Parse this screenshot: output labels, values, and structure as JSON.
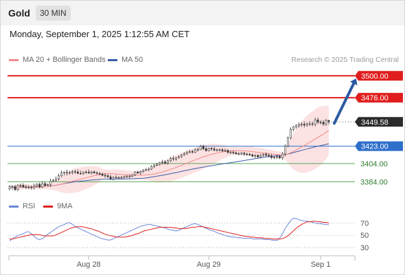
{
  "header": {
    "title": "Gold",
    "timeframe": "30 MIN"
  },
  "datetime": "Monday, September 1, 2025 1:12:55 AM CET",
  "legend": {
    "ma": "MA 20 + Bollinger Bands",
    "ma50": "MA 50",
    "rsi": "RSI",
    "ma9": "9MA"
  },
  "credit": "Research © 2025 Trading Central",
  "colors": {
    "resistance": "#e01e1e",
    "support_main": "#2f6fcc",
    "support": "#5aa65a",
    "ma20": "#f08a8a",
    "ma50": "#3a5da8",
    "band_fill": "#fbd6d6",
    "candle": "#333333",
    "arrow": "#2a5aa0",
    "rsi": "#6b86d8",
    "ma9": "#e01e1e"
  },
  "chart_data": [
    {
      "type": "candlestick",
      "title": "Gold",
      "timeframe": "30 MIN",
      "ylim": [
        3370,
        3510
      ],
      "x_ticks": [
        {
          "label": "Aug 28",
          "t": 29
        },
        {
          "label": "Aug 29",
          "t": 73
        },
        {
          "label": "Sep 1",
          "t": 114
        }
      ],
      "levels": [
        {
          "name": "resistance-2",
          "label": "3500.00",
          "value": 3500.0,
          "kind": "resistance"
        },
        {
          "name": "resistance-1",
          "label": "3476.00",
          "value": 3476.0,
          "kind": "resistance"
        },
        {
          "name": "last-price",
          "label": "3449.58",
          "value": 3449.58,
          "kind": "last"
        },
        {
          "name": "pivot",
          "label": "3423.00",
          "value": 3423.0,
          "kind": "pivot"
        },
        {
          "name": "support-1",
          "label": "3404.00",
          "value": 3404.0,
          "kind": "support"
        },
        {
          "name": "support-2",
          "label": "3384.00",
          "value": 3384.0,
          "kind": "support"
        }
      ],
      "arrow": {
        "from": [
          119,
          3448
        ],
        "to": [
          127,
          3497
        ]
      },
      "candles": [
        [
          3376.5,
          3380.6,
          3374.4,
          3378.5
        ],
        [
          3378.5,
          3380.5,
          3375.2,
          3378.7
        ],
        [
          3378.7,
          3380.7,
          3373.8,
          3375.5
        ],
        [
          3375.5,
          3381.6,
          3373.4,
          3379.8
        ],
        [
          3379.8,
          3382.1,
          3377.4,
          3380.1
        ],
        [
          3380.1,
          3382.5,
          3377.2,
          3378.2
        ],
        [
          3378.2,
          3380.9,
          3376.4,
          3377.9
        ],
        [
          3377.9,
          3380.3,
          3376.3,
          3378.1
        ],
        [
          3378.1,
          3380.1,
          3375.4,
          3377.6
        ],
        [
          3377.6,
          3382.2,
          3375.5,
          3379.4
        ],
        [
          3379.4,
          3382.3,
          3377.8,
          3381.4
        ],
        [
          3381.4,
          3383.1,
          3376.9,
          3378.2
        ],
        [
          3378.2,
          3384.5,
          3377.1,
          3382.0
        ],
        [
          3382.0,
          3384.1,
          3378.8,
          3380.0
        ],
        [
          3380.0,
          3382.1,
          3379.1,
          3380.7
        ],
        [
          3380.7,
          3387.4,
          3378.4,
          3384.6
        ],
        [
          3384.6,
          3387.3,
          3383.7,
          3385.6
        ],
        [
          3385.6,
          3389.7,
          3384.4,
          3387.1
        ],
        [
          3387.1,
          3392.9,
          3385.5,
          3390.5
        ],
        [
          3390.5,
          3396.4,
          3389.1,
          3393.6
        ],
        [
          3393.6,
          3395.3,
          3391.0,
          3394.4
        ],
        [
          3394.4,
          3397.2,
          3390.9,
          3393.9
        ],
        [
          3393.9,
          3396.0,
          3392.0,
          3394.0
        ],
        [
          3394.0,
          3396.7,
          3392.2,
          3395.1
        ],
        [
          3395.1,
          3397.3,
          3392.8,
          3394.7
        ],
        [
          3394.7,
          3397.4,
          3392.4,
          3393.2
        ],
        [
          3393.2,
          3396.1,
          3391.9,
          3392.7
        ],
        [
          3392.7,
          3395.3,
          3391.5,
          3394.7
        ],
        [
          3394.7,
          3396.5,
          3392.8,
          3394.5
        ],
        [
          3394.5,
          3397.5,
          3392.7,
          3393.6
        ],
        [
          3393.6,
          3395.9,
          3391.9,
          3394.9
        ],
        [
          3394.9,
          3396.2,
          3392.8,
          3393.7
        ],
        [
          3393.7,
          3395.6,
          3391.7,
          3393.1
        ],
        [
          3393.1,
          3395.0,
          3391.1,
          3392.4
        ],
        [
          3392.4,
          3394.2,
          3389.9,
          3391.0
        ],
        [
          3391.0,
          3393.4,
          3388.0,
          3390.6
        ],
        [
          3390.6,
          3392.2,
          3387.5,
          3389.5
        ],
        [
          3389.5,
          3391.6,
          3385.8,
          3387.0
        ],
        [
          3387.0,
          3390.1,
          3385.3,
          3388.9
        ],
        [
          3388.9,
          3391.2,
          3386.6,
          3388.5
        ],
        [
          3388.5,
          3390.4,
          3387.1,
          3388.3
        ],
        [
          3388.3,
          3390.2,
          3386.6,
          3388.9
        ],
        [
          3388.9,
          3390.9,
          3386.9,
          3389.7
        ],
        [
          3389.7,
          3391.6,
          3388.0,
          3390.0
        ],
        [
          3390.0,
          3392.1,
          3387.9,
          3390.0
        ],
        [
          3390.0,
          3392.5,
          3389.0,
          3391.5
        ],
        [
          3391.5,
          3395.6,
          3390.3,
          3394.7
        ],
        [
          3394.7,
          3396.1,
          3392.8,
          3393.5
        ],
        [
          3393.5,
          3396.4,
          3391.6,
          3395.1
        ],
        [
          3395.1,
          3397.9,
          3393.7,
          3396.9
        ],
        [
          3396.9,
          3399.0,
          3395.7,
          3397.5
        ],
        [
          3397.5,
          3399.8,
          3395.3,
          3397.9
        ],
        [
          3397.9,
          3402.4,
          3396.9,
          3400.6
        ],
        [
          3400.6,
          3403.6,
          3399.0,
          3402.0
        ],
        [
          3402.0,
          3404.8,
          3400.9,
          3403.1
        ],
        [
          3403.1,
          3405.9,
          3401.7,
          3404.8
        ],
        [
          3404.8,
          3408.0,
          3402.8,
          3405.6
        ],
        [
          3405.6,
          3407.6,
          3403.0,
          3404.3
        ],
        [
          3404.3,
          3408.1,
          3402.8,
          3406.9
        ],
        [
          3406.9,
          3411.4,
          3405.7,
          3409.5
        ],
        [
          3409.5,
          3412.5,
          3406.8,
          3408.9
        ],
        [
          3408.9,
          3411.0,
          3407.0,
          3410.5
        ],
        [
          3410.5,
          3413.0,
          3409.3,
          3411.6
        ],
        [
          3411.6,
          3414.6,
          3410.1,
          3413.6
        ],
        [
          3413.6,
          3416.4,
          3412.3,
          3414.7
        ],
        [
          3414.7,
          3417.8,
          3413.3,
          3416.3
        ],
        [
          3416.3,
          3419.0,
          3415.0,
          3417.1
        ],
        [
          3417.1,
          3418.9,
          3415.0,
          3416.4
        ],
        [
          3416.4,
          3420.6,
          3415.3,
          3419.0
        ],
        [
          3419.0,
          3421.3,
          3417.1,
          3419.3
        ],
        [
          3419.3,
          3424.6,
          3418.6,
          3422.8
        ],
        [
          3422.8,
          3424.5,
          3418.6,
          3420.2
        ],
        [
          3420.2,
          3422.2,
          3416.9,
          3418.1
        ],
        [
          3418.1,
          3421.2,
          3417.2,
          3420.6
        ],
        [
          3420.6,
          3422.0,
          3418.0,
          3419.9
        ],
        [
          3419.9,
          3422.0,
          3417.4,
          3418.7
        ],
        [
          3418.7,
          3420.3,
          3416.8,
          3419.0
        ],
        [
          3419.0,
          3420.4,
          3417.2,
          3419.0
        ],
        [
          3419.0,
          3420.9,
          3416.7,
          3417.9
        ],
        [
          3417.9,
          3420.3,
          3416.7,
          3418.3
        ],
        [
          3418.3,
          3419.6,
          3414.7,
          3416.2
        ],
        [
          3416.2,
          3418.3,
          3414.2,
          3416.4
        ],
        [
          3416.4,
          3418.4,
          3413.9,
          3415.7
        ],
        [
          3415.7,
          3417.1,
          3413.6,
          3414.6
        ],
        [
          3414.6,
          3416.5,
          3413.2,
          3414.3
        ],
        [
          3414.3,
          3416.5,
          3413.0,
          3415.4
        ],
        [
          3415.4,
          3416.7,
          3412.3,
          3414.3
        ],
        [
          3414.3,
          3415.8,
          3412.4,
          3414.2
        ],
        [
          3414.2,
          3415.6,
          3412.1,
          3413.5
        ],
        [
          3413.5,
          3415.0,
          3410.8,
          3412.1
        ],
        [
          3412.1,
          3414.1,
          3410.0,
          3412.8
        ],
        [
          3412.8,
          3414.3,
          3409.5,
          3411.2
        ],
        [
          3411.2,
          3414.5,
          3410.2,
          3412.9
        ],
        [
          3412.9,
          3415.1,
          3411.4,
          3414.2
        ],
        [
          3414.2,
          3416.0,
          3411.4,
          3413.2
        ],
        [
          3413.2,
          3414.7,
          3410.6,
          3412.4
        ],
        [
          3412.4,
          3414.3,
          3408.9,
          3410.6
        ],
        [
          3410.6,
          3412.1,
          3408.7,
          3410.8
        ],
        [
          3410.8,
          3413.8,
          3408.8,
          3411.8
        ],
        [
          3411.8,
          3413.6,
          3408.9,
          3410.2
        ],
        [
          3410.2,
          3416.4,
          3408.0,
          3414.5
        ],
        [
          3414.5,
          3424.9,
          3412.0,
          3423.1
        ],
        [
          3423.1,
          3433.6,
          3421.6,
          3432.1
        ],
        [
          3432.1,
          3443.6,
          3430.1,
          3441.4
        ],
        [
          3441.4,
          3445.2,
          3439.4,
          3443.9
        ],
        [
          3443.9,
          3447.3,
          3442.1,
          3445.4
        ],
        [
          3445.4,
          3449.0,
          3443.2,
          3446.8
        ],
        [
          3446.8,
          3449.3,
          3444.1,
          3447.1
        ],
        [
          3447.1,
          3450.1,
          3443.5,
          3446.0
        ],
        [
          3446.0,
          3449.1,
          3444.2,
          3447.4
        ],
        [
          3447.4,
          3450.4,
          3444.9,
          3447.5
        ],
        [
          3447.5,
          3450.0,
          3444.9,
          3446.9
        ],
        [
          3446.9,
          3454.2,
          3444.6,
          3451.7
        ],
        [
          3451.7,
          3454.5,
          3447.3,
          3449.3
        ],
        [
          3449.3,
          3451.4,
          3446.8,
          3449.1
        ],
        [
          3449.1,
          3451.6,
          3445.2,
          3447.2
        ],
        [
          3447.2,
          3452.9,
          3445.1,
          3451.2
        ],
        [
          3451.2,
          3451.8,
          3446.8,
          3449.58
        ]
      ]
    },
    {
      "type": "line",
      "title": "RSI",
      "ylim": [
        20,
        85
      ],
      "y_ticks": [
        70,
        50,
        30
      ],
      "series": [
        {
          "name": "RSI",
          "values": [
            41,
            44,
            47,
            49,
            51,
            52,
            55,
            56,
            53,
            49,
            45,
            43,
            44,
            47,
            51,
            54,
            57,
            60,
            63,
            65,
            67,
            69,
            71,
            69,
            66,
            63,
            61,
            59,
            57,
            55,
            53,
            51,
            49,
            47,
            45,
            44,
            43,
            42,
            43,
            45,
            47,
            49,
            51,
            53,
            55,
            57,
            59,
            61,
            63,
            65,
            66,
            67,
            68,
            67,
            66,
            65,
            64,
            63,
            62,
            60,
            59,
            58,
            57,
            58,
            60,
            62,
            64,
            66,
            68,
            69,
            68,
            66,
            64,
            62,
            60,
            58,
            57,
            55,
            53,
            52,
            50,
            49,
            48,
            47,
            47,
            46,
            46,
            45,
            45,
            45,
            45,
            44,
            44,
            44,
            44,
            43,
            43,
            43,
            42,
            42,
            42,
            47,
            55,
            63,
            69,
            75,
            78,
            77,
            75,
            74,
            73,
            73,
            72,
            71,
            70,
            69,
            69,
            68,
            68,
            67
          ]
        },
        {
          "name": "9MA",
          "values": [
            44,
            44,
            45,
            46,
            47,
            48,
            49,
            50,
            51,
            51,
            51,
            51,
            50,
            49,
            49,
            49,
            49,
            50,
            52,
            54,
            56,
            58,
            60,
            62,
            63,
            64,
            64,
            64,
            63,
            62,
            61,
            60,
            58,
            57,
            55,
            53,
            51,
            50,
            49,
            48,
            47,
            47,
            47,
            47,
            48,
            49,
            50,
            52,
            53,
            55,
            57,
            58,
            59,
            60,
            61,
            62,
            63,
            63,
            63,
            63,
            63,
            62,
            62,
            61,
            61,
            61,
            61,
            62,
            63,
            63,
            64,
            64,
            64,
            63,
            62,
            61,
            60,
            59,
            58,
            57,
            56,
            55,
            54,
            53,
            52,
            51,
            50,
            49,
            48,
            48,
            47,
            47,
            46,
            46,
            46,
            45,
            45,
            45,
            44,
            44,
            44,
            44,
            45,
            47,
            50,
            54,
            58,
            62,
            65,
            68,
            70,
            72,
            72,
            73,
            73,
            72,
            72,
            71,
            71,
            70
          ]
        }
      ]
    }
  ]
}
